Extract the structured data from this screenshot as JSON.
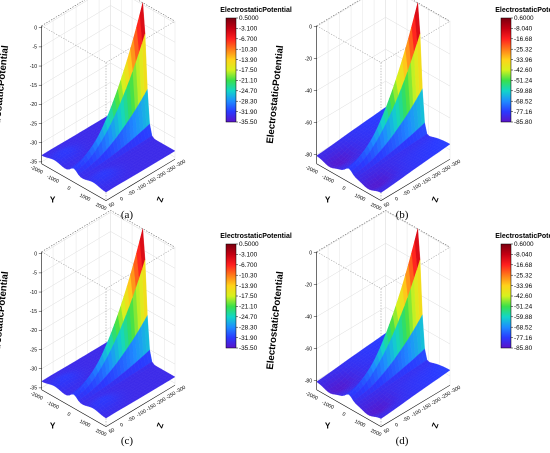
{
  "chart_data": [
    {
      "type": "surface",
      "panel_label": "(a)",
      "title": "",
      "colorbar_title": "ElectrostaticPotential",
      "colorbar_levels": [
        "0.5000",
        "-3.100",
        "-6.700",
        "-10.30",
        "-13.90",
        "-17.50",
        "-21.10",
        "-24.70",
        "-28.30",
        "-31.90",
        "-35.50"
      ],
      "zlabel": "ElectrostaticPotential",
      "ylabel": "Y",
      "xlabel": "Z",
      "z_ticks": [
        "0",
        "-5",
        "-10",
        "-15",
        "-20",
        "-25",
        "-30",
        "-35"
      ],
      "y_ticks": [
        "-2000",
        "-1000",
        "0",
        "1000",
        "2000"
      ],
      "x_ticks": [
        "50",
        "0",
        "-50",
        "-100",
        "-150",
        "-200",
        "-250",
        "-300"
      ],
      "zlim": [
        -35.5,
        0.5
      ]
    },
    {
      "type": "surface",
      "panel_label": "(b)",
      "title": "",
      "colorbar_title": "ElectrostaticPotential",
      "colorbar_levels": [
        "0.6000",
        "-8.040",
        "-16.68",
        "-25.32",
        "-33.96",
        "-42.60",
        "-51.24",
        "-59.88",
        "-68.52",
        "-77.16",
        "-85.80"
      ],
      "zlabel": "ElectrostaticPotential",
      "ylabel": "Y",
      "xlabel": "Z",
      "z_ticks": [
        "0",
        "-20",
        "-40",
        "-60",
        "-80"
      ],
      "y_ticks": [
        "-2000",
        "-1000",
        "0",
        "1000",
        "2000"
      ],
      "x_ticks": [
        "50",
        "0",
        "-50",
        "-100",
        "-150",
        "-200",
        "-250",
        "-300"
      ],
      "zlim": [
        -85.8,
        0.6
      ]
    },
    {
      "type": "surface",
      "panel_label": "(c)",
      "title": "",
      "colorbar_title": "ElectrostaticPotential",
      "colorbar_levels": [
        "0.5000",
        "-3.100",
        "-6.700",
        "-10.30",
        "-13.90",
        "-17.50",
        "-21.10",
        "-24.70",
        "-28.30",
        "-31.90",
        "-35.50"
      ],
      "zlabel": "ElectrostaticPotential",
      "ylabel": "Y",
      "xlabel": "Z",
      "z_ticks": [
        "0",
        "-5",
        "-10",
        "-15",
        "-20",
        "-25",
        "-30",
        "-35"
      ],
      "y_ticks": [
        "-2000",
        "-1000",
        "0",
        "1000",
        "2000"
      ],
      "x_ticks": [
        "50",
        "0",
        "-50",
        "-100",
        "-150",
        "-200",
        "-250",
        "-300"
      ],
      "zlim": [
        -35.5,
        0.5
      ]
    },
    {
      "type": "surface",
      "panel_label": "(d)",
      "title": "",
      "colorbar_title": "ElectrostaticPotential",
      "colorbar_levels": [
        "0.6000",
        "-8.040",
        "-16.68",
        "-25.32",
        "-33.96",
        "-42.60",
        "-51.24",
        "-59.88",
        "-68.52",
        "-77.16",
        "-85.80"
      ],
      "zlabel": "ElectrostaticPotential",
      "ylabel": "Y",
      "xlabel": "Z",
      "z_ticks": [
        "0",
        "-20",
        "-40",
        "-60",
        "-80"
      ],
      "y_ticks": [
        "-2000",
        "-1000",
        "0",
        "1000",
        "2000"
      ],
      "x_ticks": [
        "50",
        "0",
        "-50",
        "-100",
        "-150",
        "-200",
        "-250",
        "-300"
      ],
      "zlim": [
        -85.8,
        0.6
      ]
    }
  ],
  "colors": {
    "colormap": [
      "#7a0010",
      "#c40012",
      "#ff1f1f",
      "#ff7a1a",
      "#ffd21a",
      "#d6f21e",
      "#39e04a",
      "#12d6c8",
      "#1e8cff",
      "#2a3aff",
      "#5a14c8"
    ]
  }
}
